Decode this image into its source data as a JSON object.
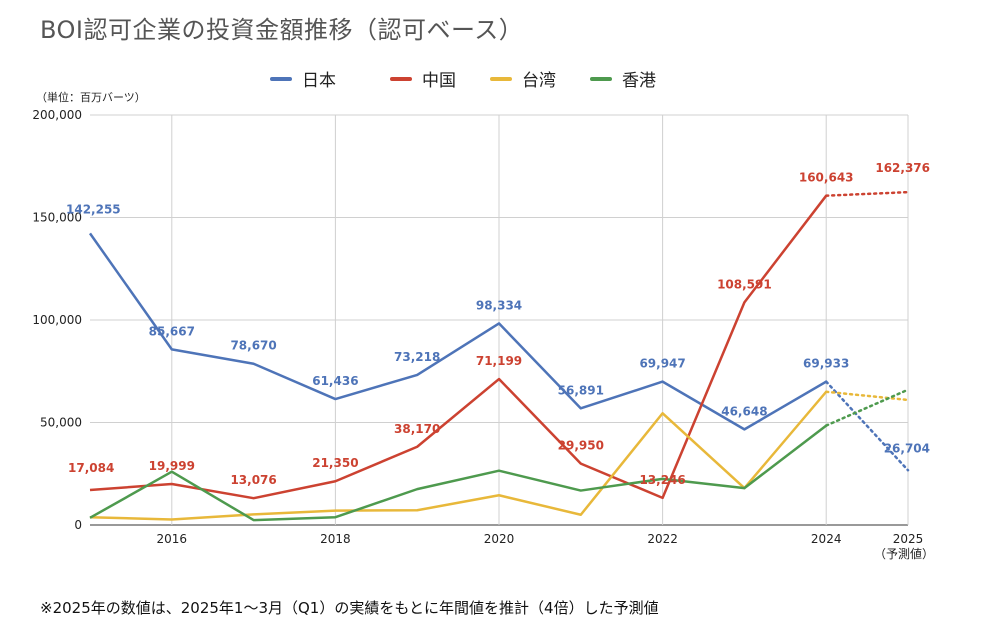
{
  "title": "BOI認可企業の投資金額推移（認可ベース）",
  "unit_label": "（単位：百万バーツ）",
  "footnote": "※2025年の数値は、2025年1〜3月（Q1）の実績をもとに年間値を推計（4倍）した予測値",
  "chart_data": {
    "type": "line",
    "x": [
      2015,
      2016,
      2017,
      2018,
      2019,
      2020,
      2021,
      2022,
      2023,
      2024,
      2025
    ],
    "x_tick_labels": [
      {
        "x": 2016,
        "label": "2016"
      },
      {
        "x": 2018,
        "label": "2018"
      },
      {
        "x": 2020,
        "label": "2020"
      },
      {
        "x": 2022,
        "label": "2022"
      },
      {
        "x": 2024,
        "label": "2024"
      },
      {
        "x": 2025,
        "label": "2025",
        "sublabel": "（予測値）"
      }
    ],
    "y_ticks": [
      "0",
      "50,000",
      "100,000",
      "150,000",
      "200,000"
    ],
    "y_tick_values": [
      0,
      50000,
      100000,
      150000,
      200000
    ],
    "ylim": [
      0,
      200000
    ],
    "xlim": [
      2015,
      2025
    ],
    "grid": true,
    "legend_position": "top",
    "forecast_from_x": 2024,
    "series": [
      {
        "name": "日本",
        "color": "#4e74b8",
        "values": [
          142255,
          85667,
          78670,
          61436,
          73218,
          98334,
          56891,
          69947,
          46648,
          69933,
          26704
        ],
        "labels": [
          "142,255",
          "85,667",
          "78,670",
          "61,436",
          "73,218",
          "98,334",
          "56,891",
          "69,947",
          "46,648",
          "69,933",
          "26,704"
        ]
      },
      {
        "name": "中国",
        "color": "#cc4231",
        "values": [
          17084,
          19999,
          13076,
          21350,
          38170,
          71199,
          29950,
          13246,
          108591,
          160643,
          162376
        ],
        "labels": [
          "17,084",
          "19,999",
          "13,076",
          "21,350",
          "38,170",
          "71,199",
          "29,950",
          "13,246",
          "108,591",
          "160,643",
          "162,376"
        ]
      },
      {
        "name": "台湾",
        "color": "#e8b83a",
        "values": [
          3800,
          2700,
          5200,
          7000,
          7200,
          14500,
          5000,
          54500,
          18000,
          65000,
          61000
        ],
        "labels": []
      },
      {
        "name": "香港",
        "color": "#4e9a4e",
        "values": [
          3500,
          26000,
          2400,
          3800,
          17500,
          26500,
          16800,
          22500,
          18000,
          48500,
          66000
        ],
        "labels": []
      }
    ]
  }
}
